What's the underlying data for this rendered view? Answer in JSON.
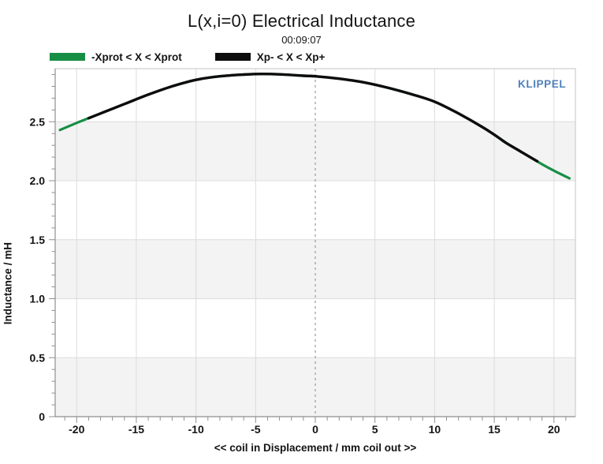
{
  "title": "L(x,i=0) Electrical Inductance",
  "subtitle": "00:09:07",
  "watermark": {
    "text": "KLIPPEL",
    "color": "#4f81bd"
  },
  "legend": {
    "items": [
      {
        "label": "-Xprot < X < Xprot",
        "color": "#188e45"
      },
      {
        "label": "Xp- < X < Xp+",
        "color": "#0d0d0d"
      }
    ]
  },
  "chart_data": {
    "type": "line",
    "title": "L(x,i=0) Electrical Inductance",
    "subtitle": "00:09:07",
    "xlabel": "<< coil in Displacement / mm coil out >>",
    "ylabel": "Inductance / mH",
    "xlim": [
      -21.8,
      21.8
    ],
    "ylim": [
      0,
      2.95
    ],
    "x_major_ticks": [
      -20,
      -15,
      -10,
      -5,
      0,
      5,
      10,
      15,
      20
    ],
    "x_major_labels": [
      "-20",
      "-15",
      "-10",
      "-5",
      "0",
      "5",
      "10",
      "15",
      "20"
    ],
    "x_minor_step": 1,
    "y_major_ticks": [
      0,
      0.5,
      1.0,
      1.5,
      2.0,
      2.5
    ],
    "y_major_labels": [
      "0",
      "0.5",
      "1.0",
      "1.5",
      "2.0",
      "2.5"
    ],
    "y_minor_step": 0.1,
    "grid": true,
    "zero_line": {
      "x": 0,
      "style": "dashed",
      "color": "#999999"
    },
    "bands": {
      "step": 0.5,
      "shaded": "#f3f3f3",
      "plain": "#ffffff",
      "first_shaded": true
    },
    "legend_position": "top-left",
    "series": [
      {
        "name": "-Xprot < X < Xprot",
        "color": "#188e45",
        "width": 3.2,
        "x": [
          -21.4,
          -20,
          -19,
          -18,
          -16,
          -14,
          -12,
          -10,
          -8,
          -6,
          -4.5,
          -3,
          -1,
          0,
          2,
          4,
          6,
          8,
          10,
          12,
          14,
          15,
          16,
          17,
          18,
          19,
          20,
          21.3
        ],
        "y": [
          2.43,
          2.49,
          2.53,
          2.57,
          2.65,
          2.73,
          2.8,
          2.855,
          2.885,
          2.9,
          2.905,
          2.902,
          2.89,
          2.885,
          2.865,
          2.835,
          2.79,
          2.735,
          2.67,
          2.57,
          2.455,
          2.39,
          2.32,
          2.26,
          2.2,
          2.14,
          2.085,
          2.02
        ]
      },
      {
        "name": "Xp- < X < Xp+",
        "color": "#0d0d0d",
        "width": 3.4,
        "x": [
          -19,
          -18,
          -16,
          -14,
          -12,
          -10,
          -8,
          -6,
          -4.5,
          -3,
          -1,
          0,
          2,
          4,
          6,
          8,
          10,
          12,
          14,
          15,
          16,
          17,
          18,
          18.6
        ],
        "y": [
          2.53,
          2.57,
          2.65,
          2.73,
          2.8,
          2.855,
          2.885,
          2.9,
          2.905,
          2.902,
          2.89,
          2.885,
          2.865,
          2.835,
          2.79,
          2.735,
          2.67,
          2.57,
          2.455,
          2.39,
          2.32,
          2.26,
          2.2,
          2.165
        ]
      }
    ],
    "colors": {
      "grid": "#dcdcdc",
      "band": "#f3f3f3",
      "border": "#c4c4c4",
      "axis": "#8f8f8f",
      "tick": "#8f8f8f",
      "text": "#141414"
    }
  }
}
